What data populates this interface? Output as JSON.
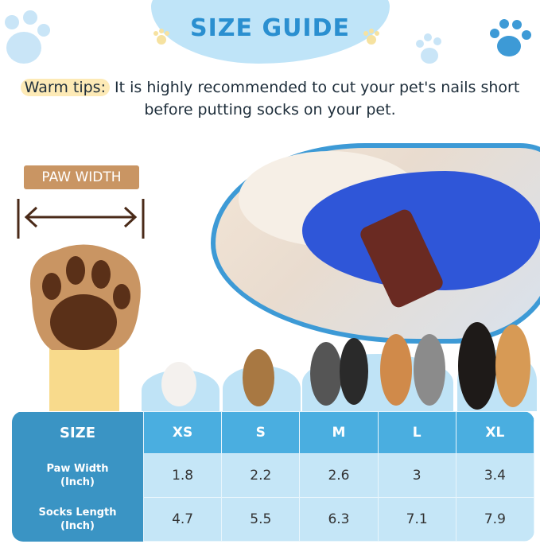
{
  "header": {
    "title": "SIZE GUIDE"
  },
  "tips": {
    "label": "Warm tips:",
    "text": "It is highly recommended to cut your pet's nails short before putting socks on your pet."
  },
  "paw_diagram": {
    "label": "PAW WIDTH"
  },
  "table": {
    "corner": "SIZE",
    "sizes": [
      "XS",
      "S",
      "M",
      "L",
      "XL"
    ],
    "rows": [
      {
        "label_line1": "Paw Width",
        "label_line2": "(Inch)",
        "values": [
          "1.8",
          "2.2",
          "2.6",
          "3",
          "3.4"
        ]
      },
      {
        "label_line1": "Socks Length",
        "label_line2": "(Inch)",
        "values": [
          "4.7",
          "5.5",
          "6.3",
          "7.1",
          "7.9"
        ]
      }
    ]
  },
  "colors": {
    "title": "#2a8fd0",
    "table_dark": "#3a94c4",
    "table_header": "#4aaee0",
    "table_cell": "#c5e6f7",
    "paw_brown": "#c99563"
  }
}
